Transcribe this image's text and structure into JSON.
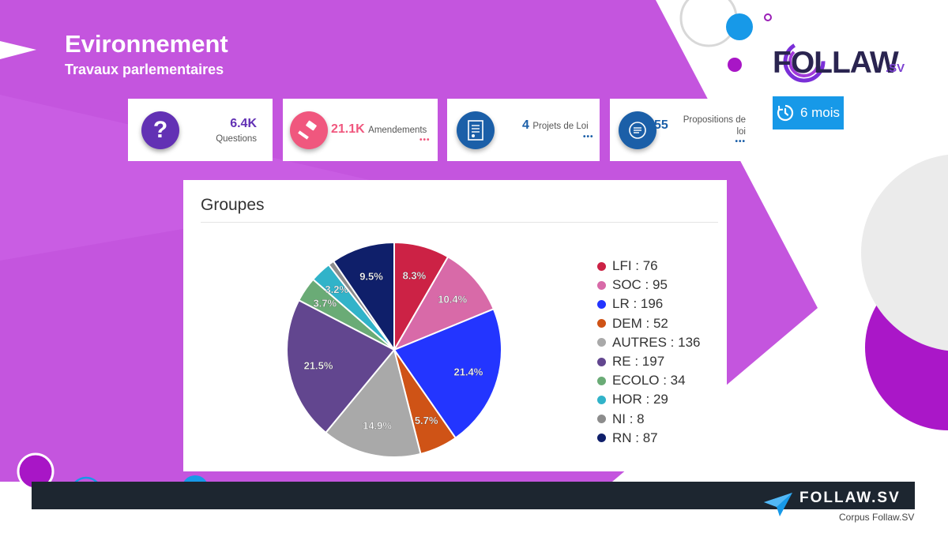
{
  "header": {
    "title": "Evironnement",
    "subtitle": "Travaux parlementaires"
  },
  "brand": {
    "logo_main": "FOLLAW",
    "logo_suffix": ".SV",
    "footer_brand": "FOLLAW.SV",
    "source": "Corpus Follaw.SV"
  },
  "period": {
    "icon": "history-clock-icon",
    "label": "6 mois"
  },
  "kpis": [
    {
      "icon": "question-icon",
      "value": "6.4K",
      "label": "Questions",
      "color": "#6231b4"
    },
    {
      "icon": "gavel-icon",
      "value": "21.1K",
      "label": "Amendements",
      "more": "•••",
      "color": "#f0577e"
    },
    {
      "icon": "document-icon",
      "value": "4",
      "label": "Projets de Loi",
      "more": "•••",
      "color": "#1b5fa8"
    },
    {
      "icon": "proposal-icon",
      "value": "55",
      "label_line1": "Propositions de",
      "label_line2": "loi",
      "more": "•••",
      "color": "#1b5fa8"
    }
  ],
  "chart_card": {
    "title": "Groupes"
  },
  "chart_data": {
    "type": "pie",
    "title": "Groupes",
    "slices": [
      {
        "name": "LFI",
        "value": 76,
        "pct_label": "8.3%",
        "color": "#cc2245"
      },
      {
        "name": "SOC",
        "value": 95,
        "pct_label": "10.4%",
        "color": "#d86aa8"
      },
      {
        "name": "LR",
        "value": 196,
        "pct_label": "21.4%",
        "color": "#2335ff"
      },
      {
        "name": "DEM",
        "value": 52,
        "pct_label": "5.7%",
        "color": "#cf5316"
      },
      {
        "name": "AUTRES",
        "value": 136,
        "pct_label": "14.9%",
        "color": "#a9a9a9"
      },
      {
        "name": "RE",
        "value": 197,
        "pct_label": "21.5%",
        "color": "#62468f"
      },
      {
        "name": "ECOLO",
        "value": 34,
        "pct_label": "3.7%",
        "color": "#6aab76"
      },
      {
        "name": "HOR",
        "value": 29,
        "pct_label": "3.2%",
        "color": "#31b3c9"
      },
      {
        "name": "NI",
        "value": 8,
        "pct_label": "",
        "color": "#8c8c8c"
      },
      {
        "name": "RN",
        "value": 87,
        "pct_label": "9.5%",
        "color": "#0f1f6a"
      }
    ],
    "legend_position": "right"
  }
}
